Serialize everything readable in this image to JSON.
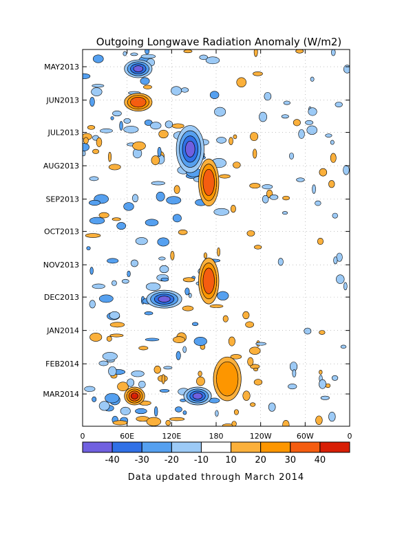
{
  "chart_data": {
    "type": "heatmap",
    "title": "Outgoing Longwave Radiation Anomaly (W/m2)",
    "subtitle": "",
    "x_axis": {
      "ticks": [
        "0",
        "60E",
        "120E",
        "180",
        "120W",
        "60W",
        "0"
      ],
      "range": [
        "0",
        "0"
      ]
    },
    "y_axis": {
      "ticks": [
        "MAY2013",
        "JUN2013",
        "JUL2013",
        "AUG2013",
        "SEP2013",
        "OCT2013",
        "NOV2013",
        "DEC2013",
        "JAN2014",
        "FEB2014",
        "MAR2014"
      ],
      "range": [
        "2013-04-15",
        "2014-03-31"
      ]
    },
    "colorbar": {
      "labels": [
        "-40",
        "-30",
        "-20",
        "-10",
        "10",
        "20",
        "30",
        "40"
      ],
      "colors": [
        "#7060e0",
        "#3070e6",
        "#55a0f0",
        "#9ccaf6",
        "#ffffff",
        "#fbb03b",
        "#fd9600",
        "#f55d10",
        "#d81e05"
      ]
    },
    "grid": true,
    "footnote": "Data updated through March 2014",
    "anomaly_features": [
      {
        "region": "Indian Ocean 60E-90E",
        "period": "MAY2013",
        "sign": "negative",
        "magnitude": -40
      },
      {
        "region": "Indian Ocean 60E-90E",
        "period": "JUN2013",
        "sign": "positive",
        "magnitude": 30
      },
      {
        "region": "Western Pacific 130E-160E",
        "period": "JUL2013-AUG2013",
        "sign": "negative",
        "magnitude": -40
      },
      {
        "region": "Dateline 160E-180",
        "period": "AUG2013-SEP2013",
        "sign": "positive",
        "magnitude": 30
      },
      {
        "region": "Maritime continent 90E-130E",
        "period": "DEC2013",
        "sign": "negative",
        "magnitude": -40
      },
      {
        "region": "Western Pacific 160E-180",
        "period": "NOV2013-DEC2013",
        "sign": "positive",
        "magnitude": 30
      },
      {
        "region": "Central Pacific 180-150W",
        "period": "FEB2014-MAR2014",
        "sign": "positive",
        "magnitude": 20
      },
      {
        "region": "Indian Ocean 60E-80E",
        "period": "MAR2014",
        "sign": "positive",
        "magnitude": 40
      },
      {
        "region": "Western Pacific 140E-170E",
        "period": "MAR2014",
        "sign": "negative",
        "magnitude": -40
      }
    ]
  }
}
